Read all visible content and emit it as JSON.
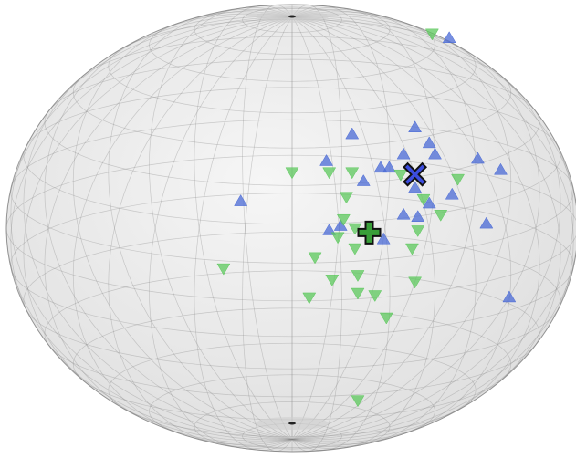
{
  "chart_data": {
    "type": "scatter",
    "xlim": [
      -1,
      1
    ],
    "ylim": [
      -1,
      1
    ],
    "grid": true,
    "series": [
      {
        "color": "#4a6ad6",
        "marker": "triangle-up",
        "x": [
          0.55,
          0.43,
          0.21,
          0.48,
          0.5,
          0.39,
          0.12,
          0.65,
          0.73,
          0.31,
          0.34,
          0.25,
          0.43,
          0.56,
          0.48,
          -0.18,
          0.39,
          0.44,
          0.68,
          0.13,
          0.17,
          0.32,
          0.76
        ],
        "values": [
          0.85,
          0.45,
          0.42,
          0.38,
          0.33,
          0.33,
          0.3,
          0.31,
          0.26,
          0.27,
          0.27,
          0.21,
          0.18,
          0.15,
          0.11,
          0.12,
          0.06,
          0.05,
          0.02,
          -0.01,
          0.01,
          -0.05,
          -0.31
        ]
      },
      {
        "color": "#5cc85c",
        "marker": "triangle-down",
        "x": [
          0.49,
          0.0,
          0.13,
          0.21,
          0.38,
          0.58,
          0.19,
          0.46,
          0.52,
          0.18,
          0.22,
          0.44,
          0.16,
          0.22,
          0.42,
          0.08,
          -0.24,
          0.14,
          0.23,
          0.43,
          0.06,
          0.23,
          0.29,
          0.33,
          0.23
        ],
        "values": [
          0.87,
          0.25,
          0.25,
          0.25,
          0.24,
          0.22,
          0.14,
          0.13,
          0.06,
          0.04,
          0.0,
          -0.01,
          -0.04,
          -0.09,
          -0.09,
          -0.13,
          -0.18,
          -0.23,
          -0.21,
          -0.24,
          -0.31,
          -0.29,
          -0.3,
          -0.4,
          -0.77
        ]
      },
      {
        "color": "#3344dd",
        "marker": "x",
        "x": [
          0.43
        ],
        "values": [
          0.24
        ]
      },
      {
        "color": "#2e9a2e",
        "marker": "plus",
        "x": [
          0.27
        ],
        "values": [
          -0.02
        ]
      }
    ]
  }
}
